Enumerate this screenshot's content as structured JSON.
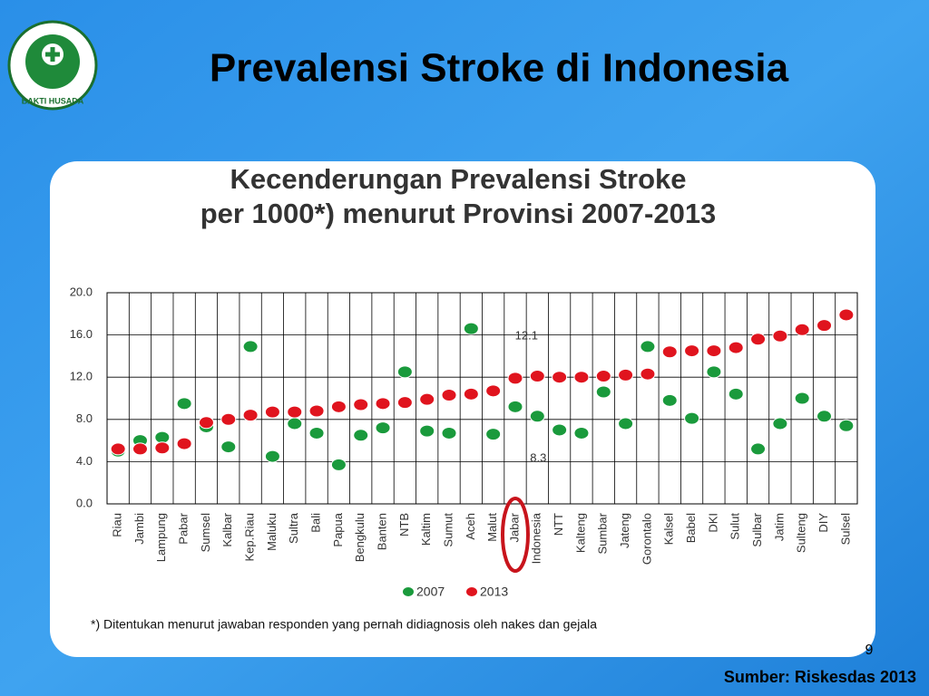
{
  "slide": {
    "title": "Prevalensi Stroke di Indonesia",
    "logo_text": "BAKTI HUSADA",
    "page_number": "9",
    "source": "Sumber:  Riskesdas 2013"
  },
  "chart_data": {
    "type": "dot",
    "title": [
      "Kecenderungan Prevalensi Stroke",
      "per 1000*) menurut Provinsi 2007-2013"
    ],
    "categories": [
      "Riau",
      "Jambi",
      "Lampung",
      "Pabar",
      "Sumsel",
      "Kalbar",
      "Kep.Riau",
      "Maluku",
      "Sultra",
      "Bali",
      "Papua",
      "Bengkulu",
      "Banten",
      "NTB",
      "Kaltim",
      "Sumut",
      "Aceh",
      "Malut",
      "Jabar",
      "Indonesia",
      "NTT",
      "Kalteng",
      "Sumbar",
      "Jateng",
      "Gorontalo",
      "Kalsel",
      "Babel",
      "DKI",
      "Sulut",
      "Sulbar",
      "Jatim",
      "Sulteng",
      "DIY",
      "Sulsel"
    ],
    "series": [
      {
        "name": "2007",
        "color": "#1a9a3c",
        "values": [
          5.0,
          6.0,
          6.3,
          9.5,
          7.3,
          5.4,
          14.9,
          4.5,
          7.6,
          6.7,
          3.7,
          6.5,
          7.2,
          12.5,
          6.9,
          6.7,
          16.6,
          6.6,
          9.2,
          8.3,
          7.0,
          6.7,
          10.6,
          7.6,
          14.9,
          9.8,
          8.1,
          12.5,
          10.4,
          5.2,
          7.6,
          10.0,
          8.3,
          7.4
        ]
      },
      {
        "name": "2013",
        "color": "#e0141e",
        "values": [
          5.2,
          5.2,
          5.3,
          5.7,
          7.7,
          8.0,
          8.4,
          8.7,
          8.7,
          8.8,
          9.2,
          9.4,
          9.5,
          9.6,
          9.9,
          10.3,
          10.4,
          10.7,
          11.9,
          12.1,
          12.0,
          12.0,
          12.1,
          12.2,
          12.3,
          14.4,
          14.5,
          14.5,
          14.8,
          15.6,
          15.9,
          16.5,
          16.9,
          17.9
        ]
      }
    ],
    "annotations": [
      "12.1",
      "8.3"
    ],
    "ylim": [
      0,
      20
    ],
    "yticks": [
      {
        "value": 0,
        "label": "0.0"
      },
      {
        "value": 4,
        "label": "4.0"
      },
      {
        "value": 8,
        "label": "8.0"
      },
      {
        "value": 12,
        "label": "12.0"
      },
      {
        "value": 16,
        "label": "16.0"
      },
      {
        "value": 20,
        "label": "20.0"
      }
    ],
    "grid": true,
    "footnote": "*) Ditentukan menurut jawaban responden yang pernah didiagnosis oleh nakes dan gejala"
  }
}
